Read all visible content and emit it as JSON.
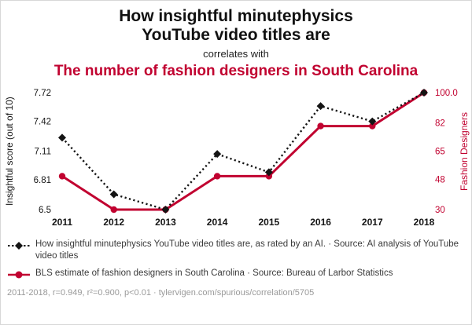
{
  "header": {
    "title_line1": "How insightful minutephysics",
    "title_line2": "YouTube video titles are",
    "connector": "correlates with",
    "title2": "The number of fashion designers in South Carolina"
  },
  "colors": {
    "red": "#c10230",
    "black": "#141414",
    "footer_gray": "#9a9a9a"
  },
  "chart_data": {
    "type": "line",
    "x_ticks": [
      "2011",
      "2012",
      "2013",
      "2014",
      "2015",
      "2016",
      "2017",
      "2018"
    ],
    "left_axis": {
      "label": "Insightful score (out of 10)",
      "tick_labels": [
        "6.5",
        "6.81",
        "7.11",
        "7.42",
        "7.72"
      ],
      "tick_values": [
        6.5,
        6.81,
        7.11,
        7.42,
        7.72
      ],
      "min": 6.5,
      "max": 7.72
    },
    "right_axis": {
      "label": "Fashion Designers",
      "tick_labels": [
        "30",
        "48",
        "65",
        "82",
        "100.0"
      ],
      "tick_values": [
        30,
        48,
        65,
        82,
        100
      ],
      "min": 30,
      "max": 100
    },
    "series": [
      {
        "name": "How insightful minutephysics YouTube video titles are",
        "axis": "left",
        "color": "#141414",
        "line_style": "dashed",
        "marker": "diamond",
        "values": [
          7.25,
          6.66,
          6.5,
          7.08,
          6.89,
          7.58,
          7.42,
          7.72
        ]
      },
      {
        "name": "BLS estimate of fashion designers in South Carolina",
        "axis": "right",
        "color": "#c10230",
        "line_style": "solid",
        "marker": "circle",
        "values": [
          50,
          30,
          30,
          50,
          50,
          80,
          80,
          100
        ]
      }
    ],
    "legend_position": "bottom",
    "grid": false
  },
  "legend": [
    {
      "label": "How insightful minutephysics YouTube video titles are, as rated by an AI. · Source: AI analysis of YouTube video titles",
      "marker": "diamond-dashed",
      "color": "#141414"
    },
    {
      "label": "BLS estimate of fashion designers in South Carolina · Source: Bureau of Larbor Statistics",
      "marker": "circle-solid",
      "color": "#c10230"
    }
  ],
  "footer": {
    "text": "2011-2018, r=0.949, r²=0.900, p<0.01 · tylervigen.com/spurious/correlation/5705"
  }
}
